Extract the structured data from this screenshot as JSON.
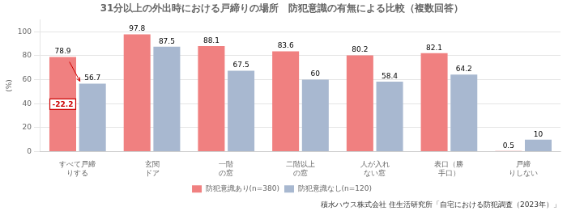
{
  "chart_data": {
    "type": "bar",
    "title": "31分以上の外出時における戸締りの場所　防犯意識の有無による比較（複数回答）",
    "categories": [
      "すべて戸締\nりする",
      "玄関\nドア",
      "一階\nの窓",
      "二階以上\nの窓",
      "人が入れ\nない窓",
      "表口（勝\n手口）",
      "戸締\nりしない"
    ],
    "series": [
      {
        "name": "防犯意識あり(n=380)",
        "color": "#F08080",
        "values": [
          78.9,
          97.8,
          88.1,
          83.6,
          80.2,
          82.1,
          0.5
        ]
      },
      {
        "name": "防犯意識なし(n=120)",
        "color": "#A8B8D0",
        "values": [
          56.7,
          87.5,
          67.5,
          60.0,
          58.4,
          64.2,
          10.0
        ]
      }
    ],
    "ylabel": "(%)",
    "ylim": [
      0,
      110
    ],
    "yticks": [
      0,
      20,
      40,
      60,
      80,
      100
    ],
    "grid": true,
    "legend": "bottom",
    "data_labels": true,
    "annotations": [
      {
        "text": "-22.2",
        "color": "#CC0000"
      }
    ],
    "source": "積水ハウス株式会社 住生活研究所「自宅における防犯調査（2023年）」"
  }
}
